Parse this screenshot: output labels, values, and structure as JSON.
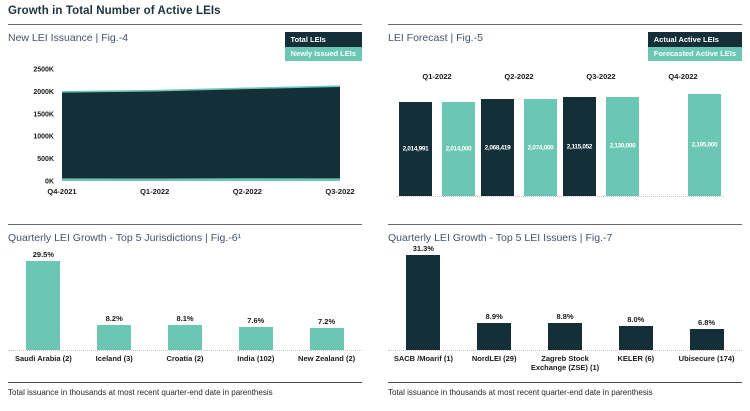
{
  "page_title": "Growth in Total Number of Active LEIs",
  "footnote": "Total issuance in thousands at most recent quarter-end date in parenthesis",
  "colors": {
    "dark": "#152F38",
    "teal": "#6BC7B3",
    "panel_title": "#44546A",
    "header_text": "#1D3340",
    "divider": "#6B6B6B",
    "dotted_baseline": "#C4C4C4"
  },
  "panels": {
    "issuance": {
      "title": "New LEI Issuance | Fig.-4",
      "legend": [
        {
          "label": "Total LEIs",
          "color": "dark"
        },
        {
          "label": "Newly Issued LEIs",
          "color": "teal"
        }
      ]
    },
    "forecast": {
      "title": "LEI Forecast | Fig.-5",
      "legend": [
        {
          "label": "Actual Active LEIs",
          "color": "dark"
        },
        {
          "label": "Forecasted Active LEIs",
          "color": "teal"
        }
      ]
    },
    "jurisdictions": {
      "title": "Quarterly LEI Growth - Top 5 Jurisdictions | Fig.-6¹"
    },
    "issuers": {
      "title": "Quarterly LEI Growth - Top 5 LEI Issuers | Fig.-7"
    }
  },
  "chart_data": [
    {
      "id": "issuance",
      "type": "area",
      "title": "New LEI Issuance | Fig.-4",
      "x": [
        "Q4-2021",
        "Q1-2022",
        "Q2-2022",
        "Q3-2022"
      ],
      "series": [
        {
          "name": "Total LEIs",
          "color": "dark",
          "values": [
            1990000,
            2014991,
            2068419,
            2115052
          ]
        },
        {
          "name": "Newly Issued LEIs",
          "color": "teal",
          "values": [
            58000,
            55000,
            62000,
            58000
          ]
        }
      ],
      "ylim": [
        0,
        2500000
      ],
      "yticks": [
        "0K",
        "500K",
        "1000K",
        "1500K",
        "2000K",
        "2500K"
      ],
      "grid": false,
      "legend_position": "top-right"
    },
    {
      "id": "forecast",
      "type": "bar",
      "title": "LEI Forecast | Fig.-5",
      "categories": [
        "Q1-2022",
        "Q2-2022",
        "Q3-2022",
        "Q4-2022"
      ],
      "series": [
        {
          "name": "Actual Active LEIs",
          "color": "dark",
          "values": [
            2014991,
            2068419,
            2115052,
            null
          ],
          "labels": [
            "2,014,991",
            "2,068,419",
            "2,115,052",
            null
          ]
        },
        {
          "name": "Forecasted Active LEIs",
          "color": "teal",
          "values": [
            2014000,
            2074000,
            2130000,
            2195000
          ],
          "labels": [
            "2,014,000",
            "2,074,000",
            "2,130,000",
            "2,195,000"
          ]
        }
      ],
      "ylim": [
        0,
        2250000
      ],
      "grid": false,
      "legend_position": "top-right"
    },
    {
      "id": "jurisdictions",
      "type": "bar",
      "title": "Quarterly LEI Growth - Top 5 Jurisdictions | Fig.-6¹",
      "categories": [
        "Saudi Arabia (2)",
        "Iceland (3)",
        "Croatia (2)",
        "India (102)",
        "New Zealand (2)"
      ],
      "values": [
        29.5,
        8.2,
        8.1,
        7.6,
        7.2
      ],
      "labels": [
        "29.5%",
        "8.2%",
        "8.1%",
        "7.6%",
        "7.2%"
      ],
      "bar_color": "teal",
      "ylim": [
        0,
        33
      ],
      "unit": "%"
    },
    {
      "id": "issuers",
      "type": "bar",
      "title": "Quarterly LEI Growth - Top 5 LEI Issuers | Fig.-7",
      "categories": [
        "SACB /Moarif (1)",
        "NordLEI (29)",
        "Zagreb Stock Exchange (ZSE) (1)",
        "KELER (6)",
        "Ubisecure (174)"
      ],
      "values": [
        31.3,
        8.9,
        8.8,
        8.0,
        6.8
      ],
      "labels": [
        "31.3%",
        "8.9%",
        "8.8%",
        "8.0%",
        "6.8%"
      ],
      "bar_color": "dark",
      "ylim": [
        0,
        33
      ],
      "unit": "%"
    }
  ]
}
